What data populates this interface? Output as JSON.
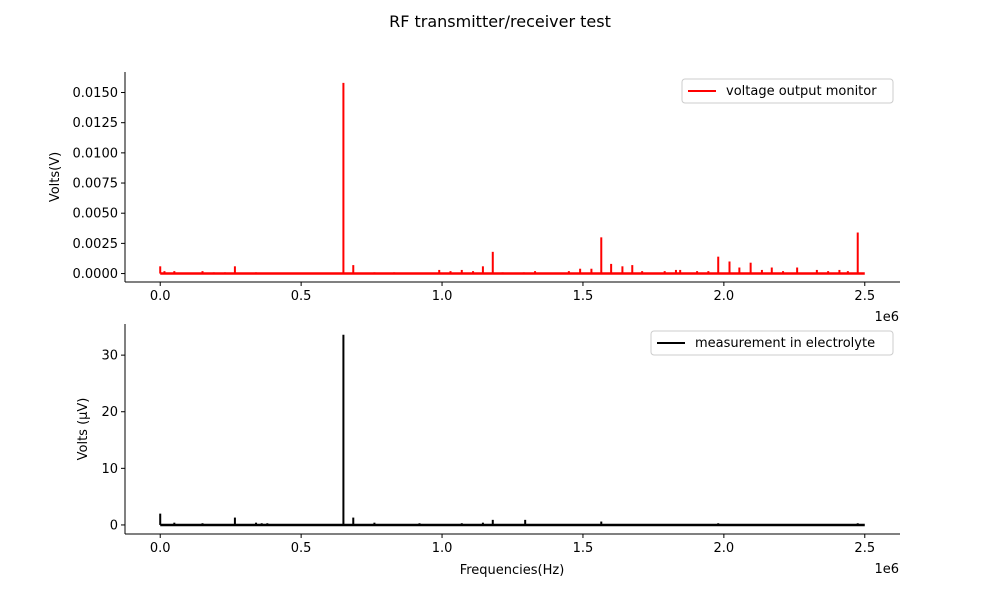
{
  "chart_data": [
    {
      "type": "line",
      "title": "RF transmitter/receiver test",
      "xlabel": "",
      "ylabel": "Volts(V)",
      "x_offset_label": "1e6",
      "xlim": [
        -125000,
        2625000
      ],
      "ylim": [
        -0.0007,
        0.0167
      ],
      "xticks": [
        0,
        500000,
        1000000,
        1500000,
        2000000,
        2500000
      ],
      "xtick_labels": [
        "0.0",
        "0.5",
        "1.0",
        "1.5",
        "2.0",
        "2.5"
      ],
      "yticks": [
        0,
        0.0025,
        0.005,
        0.0075,
        0.01,
        0.0125,
        0.015
      ],
      "ytick_labels": [
        "0.0000",
        "0.0025",
        "0.0050",
        "0.0075",
        "0.0100",
        "0.0125",
        "0.0150"
      ],
      "legend_position": "top-right",
      "grid": false,
      "series": [
        {
          "name": "voltage output monitor",
          "color": "#ff0000",
          "x_range": [
            0,
            2500000
          ],
          "baseline": 0,
          "peaks": [
            [
              0,
              0.0006
            ],
            [
              15000,
              0.0002
            ],
            [
              50000,
              0.0002
            ],
            [
              150000,
              0.0002
            ],
            [
              190000,
              0.0001
            ],
            [
              230000,
              0.0001
            ],
            [
              265000,
              0.0006
            ],
            [
              340000,
              0.0001
            ],
            [
              650000,
              0.0158
            ],
            [
              685000,
              0.0007
            ],
            [
              760000,
              0.0001
            ],
            [
              830000,
              0.0001
            ],
            [
              990000,
              0.0003
            ],
            [
              1030000,
              0.0002
            ],
            [
              1070000,
              0.0003
            ],
            [
              1110000,
              0.0002
            ],
            [
              1145000,
              0.0006
            ],
            [
              1180000,
              0.0018
            ],
            [
              1215000,
              0.0001
            ],
            [
              1290000,
              0.0001
            ],
            [
              1330000,
              0.0002
            ],
            [
              1450000,
              0.0002
            ],
            [
              1490000,
              0.0004
            ],
            [
              1530000,
              0.0004
            ],
            [
              1565000,
              0.003
            ],
            [
              1600000,
              0.0008
            ],
            [
              1640000,
              0.0006
            ],
            [
              1675000,
              0.0007
            ],
            [
              1710000,
              0.0002
            ],
            [
              1790000,
              0.0002
            ],
            [
              1830000,
              0.0003
            ],
            [
              1845000,
              0.0003
            ],
            [
              1905000,
              0.0002
            ],
            [
              1945000,
              0.0002
            ],
            [
              1980000,
              0.0014
            ],
            [
              2020000,
              0.001
            ],
            [
              2055000,
              0.0005
            ],
            [
              2095000,
              0.0009
            ],
            [
              2135000,
              0.0003
            ],
            [
              2170000,
              0.0005
            ],
            [
              2210000,
              0.0002
            ],
            [
              2260000,
              0.0005
            ],
            [
              2330000,
              0.0003
            ],
            [
              2370000,
              0.0002
            ],
            [
              2410000,
              0.0003
            ],
            [
              2440000,
              0.0002
            ],
            [
              2475000,
              0.0034
            ]
          ]
        }
      ]
    },
    {
      "type": "line",
      "title": "",
      "xlabel": "Frequencies(Hz)",
      "ylabel": "Volts (μV)",
      "x_offset_label": "1e6",
      "xlim": [
        -125000,
        2625000
      ],
      "ylim": [
        -1.6,
        35.5
      ],
      "xticks": [
        0,
        500000,
        1000000,
        1500000,
        2000000,
        2500000
      ],
      "xtick_labels": [
        "0.0",
        "0.5",
        "1.0",
        "1.5",
        "2.0",
        "2.5"
      ],
      "yticks": [
        0,
        10,
        20,
        30
      ],
      "ytick_labels": [
        "0",
        "10",
        "20",
        "30"
      ],
      "legend_position": "top-right",
      "grid": false,
      "series": [
        {
          "name": "measurement in electrolyte",
          "color": "#000000",
          "x_range": [
            0,
            2500000
          ],
          "baseline": 0,
          "peaks": [
            [
              0,
              2.0
            ],
            [
              50000,
              0.4
            ],
            [
              150000,
              0.3
            ],
            [
              265000,
              1.3
            ],
            [
              340000,
              0.4
            ],
            [
              360000,
              0.3
            ],
            [
              380000,
              0.3
            ],
            [
              650000,
              33.6
            ],
            [
              685000,
              1.3
            ],
            [
              760000,
              0.4
            ],
            [
              920000,
              0.3
            ],
            [
              1070000,
              0.3
            ],
            [
              1145000,
              0.4
            ],
            [
              1180000,
              0.9
            ],
            [
              1295000,
              0.9
            ],
            [
              1565000,
              0.6
            ],
            [
              1980000,
              0.3
            ],
            [
              2475000,
              0.3
            ]
          ]
        }
      ]
    }
  ]
}
